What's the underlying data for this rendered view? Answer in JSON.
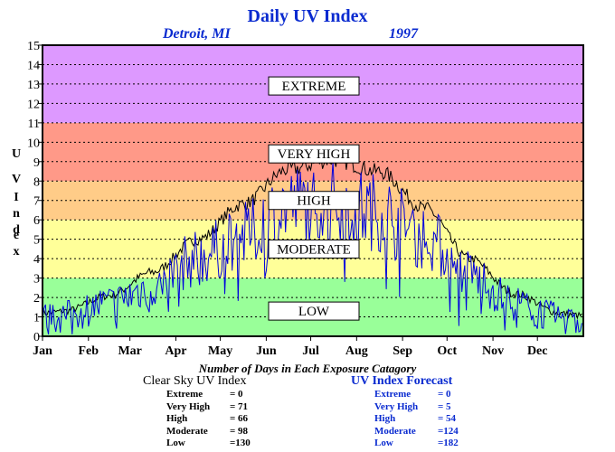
{
  "chart_data": {
    "type": "line",
    "title": "Daily UV Index",
    "location": "Detroit, MI",
    "year": "1997",
    "ylabel": "UV Index",
    "xlabel": "",
    "ylim": [
      0,
      15
    ],
    "yticks": [
      0,
      1,
      2,
      3,
      4,
      5,
      6,
      7,
      8,
      9,
      10,
      11,
      12,
      13,
      14,
      15
    ],
    "months": [
      "Jan",
      "Feb",
      "Mar",
      "Apr",
      "May",
      "Jun",
      "Jul",
      "Aug",
      "Sep",
      "Oct",
      "Nov",
      "Dec"
    ],
    "grid": true,
    "bands": [
      {
        "label": "LOW",
        "from": 0,
        "to": 3,
        "color": "#99ff99"
      },
      {
        "label": "MODERATE",
        "from": 3,
        "to": 6,
        "color": "#ffff99"
      },
      {
        "label": "HIGH",
        "from": 6,
        "to": 8,
        "color": "#ffcc88"
      },
      {
        "label": "VERY HIGH",
        "from": 8,
        "to": 11,
        "color": "#ff9988"
      },
      {
        "label": "EXTREME",
        "from": 11,
        "to": 15,
        "color": "#dd99ff"
      }
    ],
    "series": [
      {
        "key": "clear_sky",
        "color": "#000000",
        "monthly": [
          1.3,
          2.1,
          3.3,
          5.0,
          6.8,
          8.6,
          9.1,
          8.5,
          6.6,
          4.0,
          2.2,
          1.2
        ],
        "amplitude": 0.3
      },
      {
        "key": "forecast",
        "color": "#0000dd",
        "monthly": [
          0.8,
          1.4,
          2.2,
          3.6,
          4.6,
          6.1,
          6.3,
          5.8,
          4.6,
          2.8,
          1.4,
          0.7
        ],
        "amplitude": 1.6
      }
    ]
  },
  "summary": {
    "title": "Number of Days in Each Exposure Catagory",
    "clear_sky": {
      "heading": "Clear Sky UV Index",
      "rows": [
        {
          "label": "Extreme",
          "value": "= 0"
        },
        {
          "label": "Very High",
          "value": "= 71"
        },
        {
          "label": "High",
          "value": "= 66"
        },
        {
          "label": "Moderate",
          "value": "= 98"
        },
        {
          "label": "Low",
          "value": "=130"
        }
      ]
    },
    "forecast": {
      "heading": "UV Index Forecast",
      "rows": [
        {
          "label": "Extreme",
          "value": "= 0"
        },
        {
          "label": "Very High",
          "value": "= 5"
        },
        {
          "label": "High",
          "value": "= 54"
        },
        {
          "label": "Moderate",
          "value": "=124"
        },
        {
          "label": "Low",
          "value": "=182"
        }
      ]
    }
  }
}
